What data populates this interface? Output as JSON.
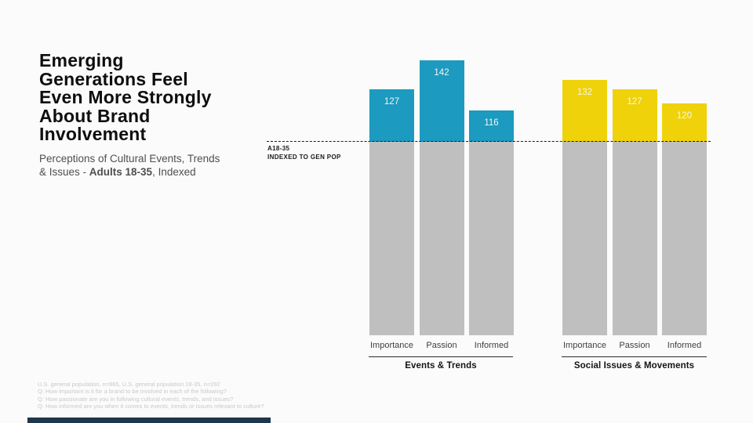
{
  "slide": {
    "title_lines": [
      "Emerging",
      "Generations Feel",
      "Even More Strongly",
      "About Brand",
      "Involvement"
    ],
    "subtitle_prefix": "Perceptions of Cultural Events, Trends & Issues - ",
    "subtitle_bold": "Adults 18-35",
    "subtitle_suffix": ", Indexed"
  },
  "chart_data": {
    "type": "bar",
    "title": "Emerging Generations Feel Even More Strongly About Brand Involvement",
    "subtitle": "Perceptions of Cultural Events, Trends & Issues - Adults 18-35, Indexed",
    "baseline": {
      "label_line1": "A18-35",
      "label_line2": "INDEXED TO GEN POP",
      "value": 100
    },
    "categories": [
      "Importance",
      "Passion",
      "Informed"
    ],
    "series": [
      {
        "name": "Events & Trends",
        "color": "#1C9AC0",
        "values": [
          127,
          142,
          116
        ]
      },
      {
        "name": "Social Issues & Movements",
        "color": "#EFD20A",
        "values": [
          132,
          127,
          120
        ]
      }
    ],
    "below_baseline_color": "#BFBFBF",
    "value_label_color": "#f4f5f5",
    "ylim": [
      0,
      150
    ],
    "grid": false,
    "legend_position": "none"
  },
  "footnotes": [
    "U.S. general population, n=865, U.S. general population 18-35, n=292",
    "Q: How important is it for a brand to be involved in each of the following?",
    "Q: How passionate are you in following cultural events, trends, and issues?",
    "Q: How informed are you when it comes to events, trends or issues relevant to culture?"
  ]
}
